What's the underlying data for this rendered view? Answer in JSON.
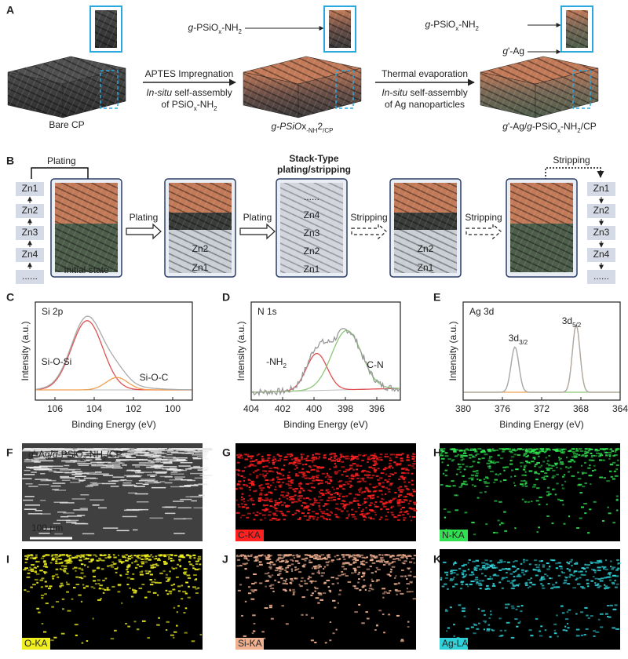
{
  "panel_labels": [
    "A",
    "B",
    "C",
    "D",
    "E",
    "F",
    "G",
    "H",
    "I",
    "J",
    "K"
  ],
  "a": {
    "bare": "Bare CP",
    "step1": {
      "line1": "APTES Impregnation",
      "line2": [
        "In-situ",
        " self-assembly"
      ],
      "line3": [
        "of PSiO",
        "x",
        "-NH",
        "2"
      ]
    },
    "step2": {
      "line1": "Thermal evaporation",
      "line2": [
        "In-situ",
        " self-assembly"
      ],
      "line3": "of Ag nanoparticles"
    },
    "inset1": [
      "g",
      "-PSiO",
      "x",
      "-NH",
      "2"
    ],
    "product1": [
      "g",
      "-PSiO",
      "x",
      "-NH",
      "2",
      "/CP"
    ],
    "inset2a": [
      "g",
      "-PSiO",
      "x",
      "-NH",
      "2"
    ],
    "inset2b": [
      "g",
      "'-Ag"
    ],
    "product2": [
      "g",
      "'-Ag/",
      "g",
      "-PSiO",
      "x",
      "-NH",
      "2",
      "/CP"
    ]
  },
  "b": {
    "plating_top": "Plating",
    "stripping_top": "Stripping",
    "title": [
      "Stack-Type",
      "plating/stripping"
    ],
    "left_stack": [
      "Zn1",
      "Zn2",
      "Zn3",
      "Zn4",
      "......"
    ],
    "right_stack": [
      "Zn1",
      "Zn2",
      "Zn3",
      "Zn4",
      "......"
    ],
    "initial": "Initial state",
    "arrows": [
      "Plating",
      "Plating",
      "Stripping",
      "Stripping"
    ],
    "box2": [
      "Zn2",
      "Zn1"
    ],
    "box3": [
      "......",
      "Zn4",
      "Zn3",
      "Zn2",
      "Zn1"
    ],
    "box4": [
      "Zn2",
      "Zn1"
    ]
  },
  "xps": [
    {
      "title": "Si 2p",
      "xlabel": "Binding Energy (eV)",
      "ylabel": "Intensity (a.u.)",
      "xlim": [
        107,
        99
      ],
      "xticks": [
        106,
        104,
        102,
        100
      ],
      "peaks": [
        [
          "Si-O-Si"
        ],
        [
          "Si-O-C"
        ]
      ]
    },
    {
      "title": "N 1s",
      "xlabel": "Binding Energy (eV)",
      "ylabel": "Intensity (a.u.)",
      "xlim": [
        404,
        394.5
      ],
      "xticks": [
        404,
        402,
        400,
        398,
        396
      ],
      "peaks": [
        [
          "-NH",
          "2"
        ],
        [
          "C-N"
        ]
      ]
    },
    {
      "title": "Ag 3d",
      "xlabel": "Binding Energy (eV)",
      "ylabel": "Intensity (a.u.)",
      "xlim": [
        380,
        364
      ],
      "xticks": [
        380,
        376,
        372,
        368,
        364
      ],
      "peaks": [
        [
          "3d",
          "3/2"
        ],
        [
          "3d",
          "5/2"
        ]
      ]
    }
  ],
  "maps": {
    "f_label": [
      "g",
      "'-Ag/",
      "g",
      "-PSiO",
      "x",
      "-NH",
      "2",
      "/CP"
    ],
    "scale": "100 μm",
    "elements": [
      "C-KA",
      "N-KA",
      "O-KA",
      "Si-KA",
      "Ag-LA"
    ]
  }
}
